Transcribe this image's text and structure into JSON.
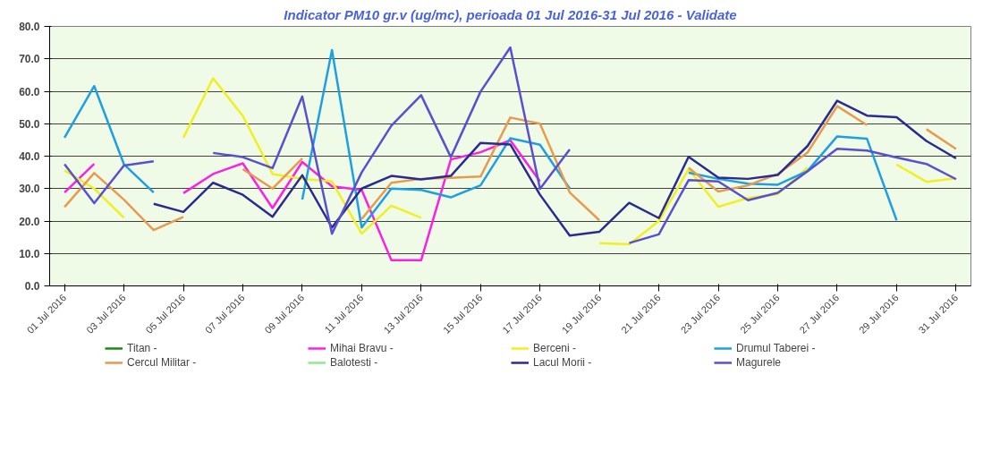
{
  "chart_data": {
    "type": "line",
    "title": "Indicator PM10 gr.v (ug/mc), perioada 01 Jul 2016-31 Jul 2016 - Validate",
    "categories": [
      "01 Jul 2016",
      null,
      "03 Jul 2016",
      null,
      "05 Jul 2016",
      null,
      "07 Jul 2016",
      null,
      "09 Jul 2016",
      null,
      "11 Jul 2016",
      null,
      "13 Jul 2016",
      null,
      "15 Jul 2016",
      null,
      "17 Jul 2016",
      null,
      "19 Jul 2016",
      null,
      "21 Jul 2016",
      null,
      "23 Jul 2016",
      null,
      "25 Jul 2016",
      null,
      "27 Jul 2016",
      null,
      "29 Jul 2016",
      null,
      "31 Jul 2016"
    ],
    "series": [
      {
        "name": "Titan -",
        "color": "#1a8a1a",
        "values": [
          null,
          null,
          null,
          null,
          null,
          null,
          null,
          null,
          null,
          null,
          null,
          null,
          null,
          null,
          null,
          null,
          null,
          null,
          null,
          null,
          null,
          null,
          null,
          null,
          null,
          null,
          null,
          null,
          null,
          null,
          null
        ]
      },
      {
        "name": "Mihai Bravu -",
        "color": "#ff1ee6",
        "values": [
          28.8,
          37.6,
          null,
          null,
          28.6,
          34.5,
          37.8,
          24.0,
          38.2,
          30.7,
          29.6,
          7.9,
          7.9,
          39.0,
          41.2,
          44.9,
          32.2,
          null,
          null,
          null,
          null,
          null,
          null,
          null,
          null,
          null,
          null,
          null,
          null,
          null,
          null
        ]
      },
      {
        "name": "Berceni -",
        "color": "#f0f020",
        "values": [
          35.6,
          30.0,
          21.0,
          null,
          45.7,
          64.0,
          52.4,
          34.5,
          33.0,
          32.2,
          16.1,
          24.7,
          21.0,
          null,
          null,
          null,
          null,
          null,
          13.2,
          12.8,
          20.0,
          36.0,
          24.4,
          27.1,
          28.3,
          36.4,
          null,
          null,
          37.4,
          32.1,
          33.2
        ]
      },
      {
        "name": "Drumul Taberei -",
        "color": "#1ea0e0",
        "values": [
          45.7,
          61.6,
          37.5,
          28.8,
          null,
          null,
          null,
          null,
          26.6,
          72.7,
          18.0,
          30.0,
          29.6,
          27.3,
          31.0,
          45.5,
          43.5,
          30.0,
          null,
          null,
          null,
          34.9,
          33.0,
          31.5,
          31.2,
          35.4,
          46.1,
          45.4,
          20.2,
          null,
          null
        ]
      },
      {
        "name": "Cercul Militar -",
        "color": "#e89a50",
        "values": [
          24.3,
          34.8,
          26.6,
          17.2,
          21.3,
          null,
          36.0,
          30.0,
          39.3,
          null,
          20.6,
          31.8,
          33.0,
          33.3,
          33.7,
          51.9,
          50.0,
          28.8,
          20.2,
          null,
          null,
          36.4,
          29.1,
          31.0,
          34.5,
          41.1,
          55.4,
          49.6,
          null,
          48.3,
          42.2
        ]
      },
      {
        "name": "Balotesti -",
        "color": "#90e890",
        "values": [
          null,
          null,
          null,
          null,
          null,
          null,
          null,
          null,
          null,
          null,
          null,
          null,
          null,
          null,
          null,
          null,
          null,
          null,
          null,
          null,
          null,
          null,
          null,
          null,
          null,
          null,
          null,
          null,
          null,
          null,
          null
        ]
      },
      {
        "name": "Lacul Morii -",
        "color": "#2b2b8f",
        "values": [
          null,
          null,
          null,
          25.3,
          22.8,
          31.8,
          28.1,
          21.3,
          34.1,
          18.0,
          30.0,
          33.9,
          32.8,
          33.9,
          44.1,
          43.6,
          28.1,
          15.5,
          16.7,
          25.6,
          20.9,
          39.8,
          33.4,
          33.0,
          34.2,
          43.1,
          57.1,
          52.5,
          52.0,
          44.7,
          39.3
        ]
      },
      {
        "name": "Magurele",
        "color": "#5a4fcf",
        "values": [
          37.5,
          25.5,
          37.1,
          38.4,
          null,
          41.0,
          39.7,
          36.3,
          58.4,
          16.1,
          35.0,
          49.4,
          58.8,
          39.7,
          59.9,
          73.5,
          29.9,
          42.1,
          null,
          13.2,
          15.9,
          32.6,
          32.2,
          26.4,
          28.7,
          35.3,
          42.3,
          41.7,
          39.6,
          37.6,
          32.9
        ]
      }
    ],
    "ylim": [
      0,
      80
    ],
    "yticks": [
      {
        "value": 0,
        "label": "0.0"
      },
      {
        "value": 10,
        "label": "10.0"
      },
      {
        "value": 20,
        "label": "20.0"
      },
      {
        "value": 30,
        "label": "30.0"
      },
      {
        "value": 40,
        "label": "40.0"
      },
      {
        "value": 50,
        "label": "50.0"
      },
      {
        "value": 60,
        "label": "60.0"
      },
      {
        "value": 70,
        "label": "70.0"
      },
      {
        "value": 80,
        "label": "80.0"
      }
    ],
    "grid": "y",
    "legend": "bottom"
  }
}
